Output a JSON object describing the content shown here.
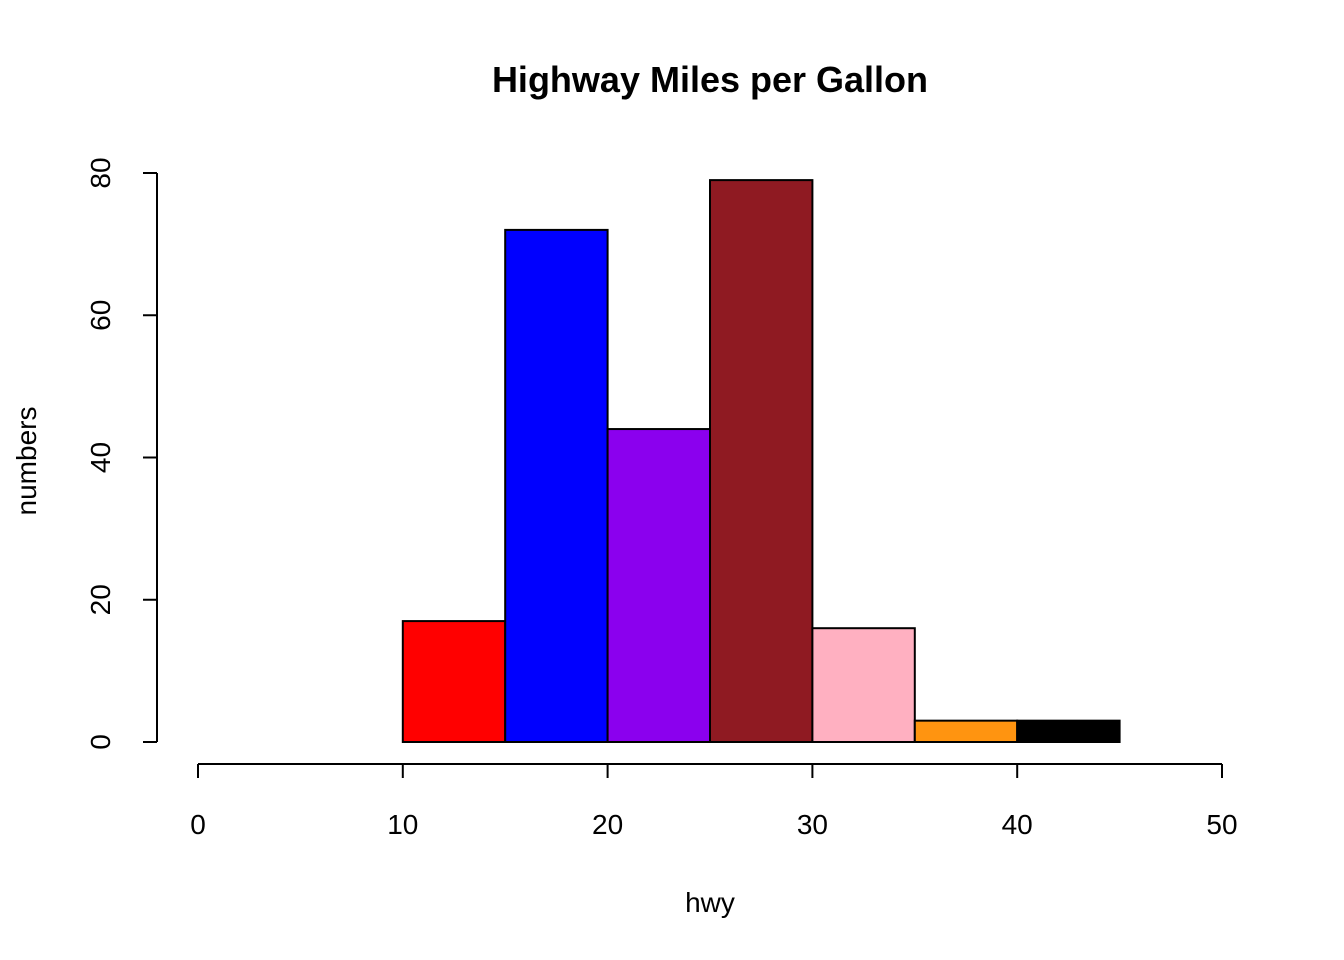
{
  "chart_data": {
    "type": "bar",
    "subtype": "histogram",
    "title": "Highway Miles per Gallon",
    "xlabel": "hwy",
    "ylabel": "numbers",
    "xlim": [
      0,
      50
    ],
    "ylim": [
      0,
      80
    ],
    "x_ticks": [
      0,
      10,
      20,
      30,
      40,
      50
    ],
    "y_ticks": [
      0,
      20,
      40,
      60,
      80
    ],
    "grid": false,
    "bins": [
      {
        "start": 10,
        "end": 15,
        "value": 17,
        "color": "#ff0000"
      },
      {
        "start": 15,
        "end": 20,
        "value": 72,
        "color": "#0000ff"
      },
      {
        "start": 20,
        "end": 25,
        "value": 44,
        "color": "#8b00ee"
      },
      {
        "start": 25,
        "end": 30,
        "value": 79,
        "color": "#8f1a22"
      },
      {
        "start": 30,
        "end": 35,
        "value": 16,
        "color": "#ffb0c1"
      },
      {
        "start": 35,
        "end": 40,
        "value": 3,
        "color": "#ff9410"
      },
      {
        "start": 40,
        "end": 45,
        "value": 3,
        "color": "#000000"
      }
    ]
  }
}
